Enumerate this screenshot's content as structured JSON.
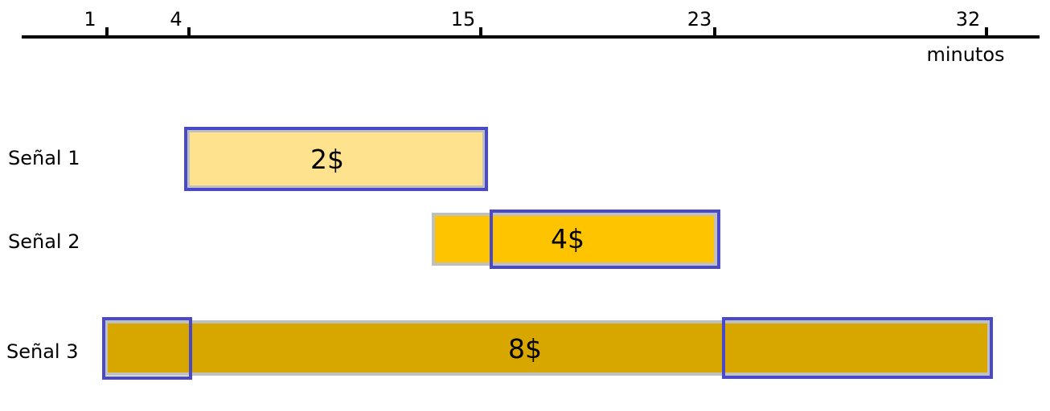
{
  "timeline": {
    "ticks": [
      {
        "label": "1"
      },
      {
        "label": "4"
      },
      {
        "label": "15"
      },
      {
        "label": "23"
      },
      {
        "label": "32"
      }
    ],
    "unit_label": "minutos"
  },
  "signals": [
    {
      "name": "Señal 1",
      "price": "2$",
      "fill": "#ffe28e"
    },
    {
      "name": "Señal 2",
      "price": "4$",
      "fill": "#ffc400"
    },
    {
      "name": "Señal 3",
      "price": "8$",
      "fill": "#d7a700"
    }
  ],
  "colors": {
    "axis": "#000000",
    "highlight_border": "#4a4ac8",
    "bar_border": "#c0c0c0"
  }
}
